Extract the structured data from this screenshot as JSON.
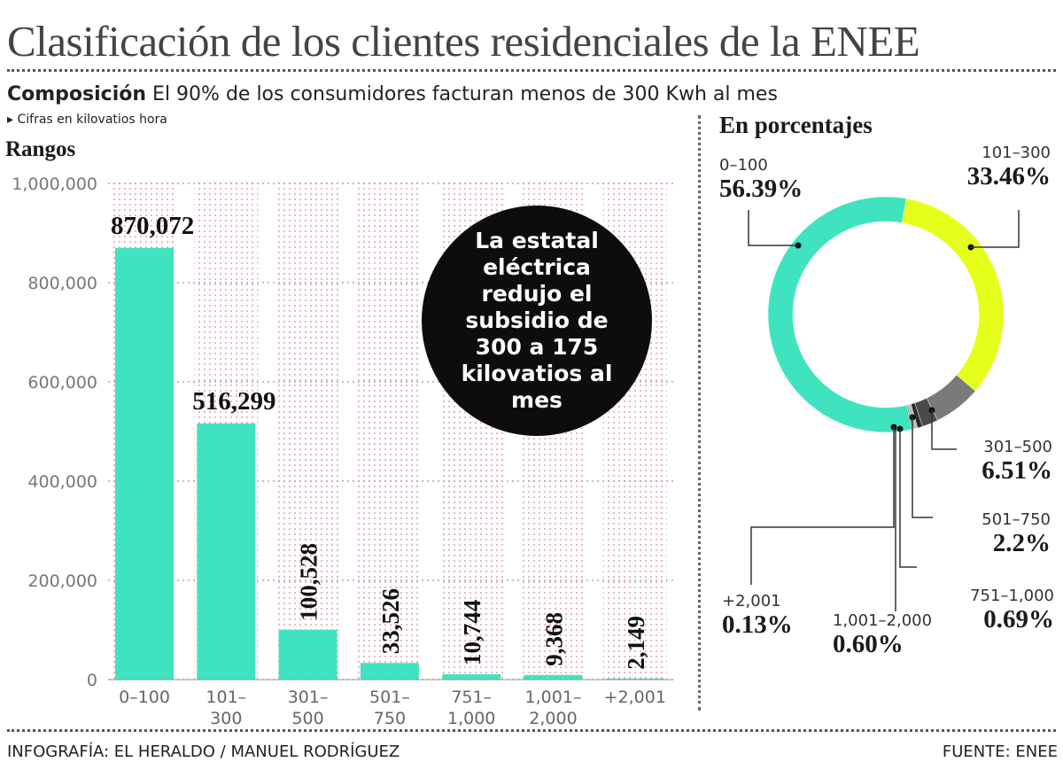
{
  "title": "Clasificación de los clientes residenciales de la ENEE",
  "subtitle": {
    "bold": "Composición",
    "text": "El 90% de los consumidores facturan menos de 300 Kwh al mes"
  },
  "note": "Cifras en kilovatios hora",
  "callout": "La estatal eléctrica redujo el subsidio de 300 a 175 kilovatios al mes",
  "credit": "INFOGRAFÍA: EL HERALDO / MANUEL RODRÍGUEZ",
  "source": "FUENTE: ENEE",
  "colors": {
    "teal": "#3fe3bf",
    "yellow": "#e6ff1a",
    "gray": "#7a7a7a",
    "darkgray": "#3a3a3a",
    "grid": "#e8a0a0"
  },
  "chart_data": [
    {
      "type": "bar",
      "ylabel": "Rangos",
      "ylim": [
        0,
        1000000
      ],
      "yticks": [
        "0",
        "200,000",
        "400,000",
        "600,000",
        "800,000",
        "1,000,000"
      ],
      "categories": [
        "0–100",
        "101–\n300",
        "301–\n500",
        "501–\n750",
        "751–\n1,000",
        "1,001–\n2,000",
        "+2,001"
      ],
      "values": [
        870072,
        516299,
        100528,
        33526,
        10744,
        9368,
        2149
      ],
      "data_labels": [
        "870,072",
        "516,299",
        "100,528",
        "33,526",
        "10,744",
        "9,368",
        "2,149"
      ],
      "grid": true
    },
    {
      "type": "pie",
      "donut": true,
      "title": "En porcentajes",
      "slices": [
        {
          "label": "0–100",
          "value": 56.39,
          "text": "56.39%",
          "color": "#3fe3bf"
        },
        {
          "label": "101–300",
          "value": 33.46,
          "text": "33.46%",
          "color": "#e6ff1a"
        },
        {
          "label": "301–500",
          "value": 6.51,
          "text": "6.51%",
          "color": "#7a7a7a"
        },
        {
          "label": "501–750",
          "value": 2.2,
          "text": "2.2%",
          "color": "#4a4a4a"
        },
        {
          "label": "751–1,000",
          "value": 0.69,
          "text": "0.69%",
          "color": "#2a2a2a"
        },
        {
          "label": "1,001–2,000",
          "value": 0.6,
          "text": "0.60%",
          "color": "#bbbbbb"
        },
        {
          "label": "+2,001",
          "value": 0.13,
          "text": "0.13%",
          "color": "#111111"
        }
      ]
    }
  ]
}
